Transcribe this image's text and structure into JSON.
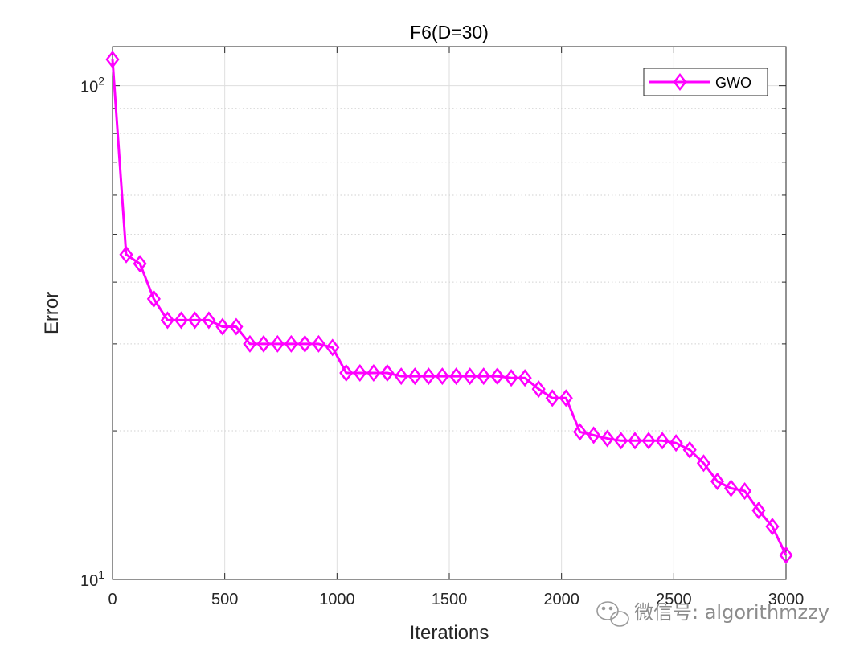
{
  "chart_data": {
    "type": "line",
    "title": "F6(D=30)",
    "xlabel": "Iterations",
    "ylabel": "Error",
    "xlim": [
      0,
      3000
    ],
    "ylim": [
      10,
      120
    ],
    "yscale": "log",
    "x_ticks": [
      0,
      500,
      1000,
      1500,
      2000,
      2500,
      3000
    ],
    "x_tick_labels": [
      "0",
      "500",
      "1000",
      "1500",
      "2000",
      "2500",
      "3000"
    ],
    "y_major_ticks": [
      10,
      100
    ],
    "y_tick_labels": [
      {
        "base": "10",
        "exp": "1"
      },
      {
        "base": "10",
        "exp": "2"
      }
    ],
    "grid": true,
    "legend_position": "top-right",
    "series": [
      {
        "name": "GWO",
        "color": "#ff00ff",
        "marker": "diamond",
        "x": [
          0,
          61,
          122,
          184,
          245,
          306,
          367,
          429,
          490,
          551,
          612,
          673,
          735,
          796,
          857,
          918,
          980,
          1041,
          1102,
          1163,
          1224,
          1286,
          1347,
          1408,
          1469,
          1531,
          1592,
          1653,
          1714,
          1776,
          1837,
          1898,
          1959,
          2020,
          2082,
          2143,
          2204,
          2265,
          2327,
          2388,
          2449,
          2510,
          2571,
          2633,
          2694,
          2755,
          2816,
          2878,
          2939,
          3000
        ],
        "y": [
          113,
          45.5,
          43.6,
          37.0,
          33.5,
          33.5,
          33.5,
          33.5,
          32.5,
          32.5,
          30.0,
          30.0,
          30.0,
          30.0,
          30.0,
          30.0,
          29.5,
          26.2,
          26.2,
          26.2,
          26.2,
          25.8,
          25.8,
          25.8,
          25.8,
          25.8,
          25.8,
          25.8,
          25.8,
          25.6,
          25.6,
          24.3,
          23.3,
          23.3,
          19.9,
          19.6,
          19.3,
          19.1,
          19.1,
          19.1,
          19.1,
          18.9,
          18.3,
          17.2,
          15.8,
          15.3,
          15.1,
          13.8,
          12.8,
          11.2
        ]
      }
    ]
  },
  "watermark": {
    "text": "微信号: algorithmzzy",
    "icon": "wechat-icon"
  }
}
